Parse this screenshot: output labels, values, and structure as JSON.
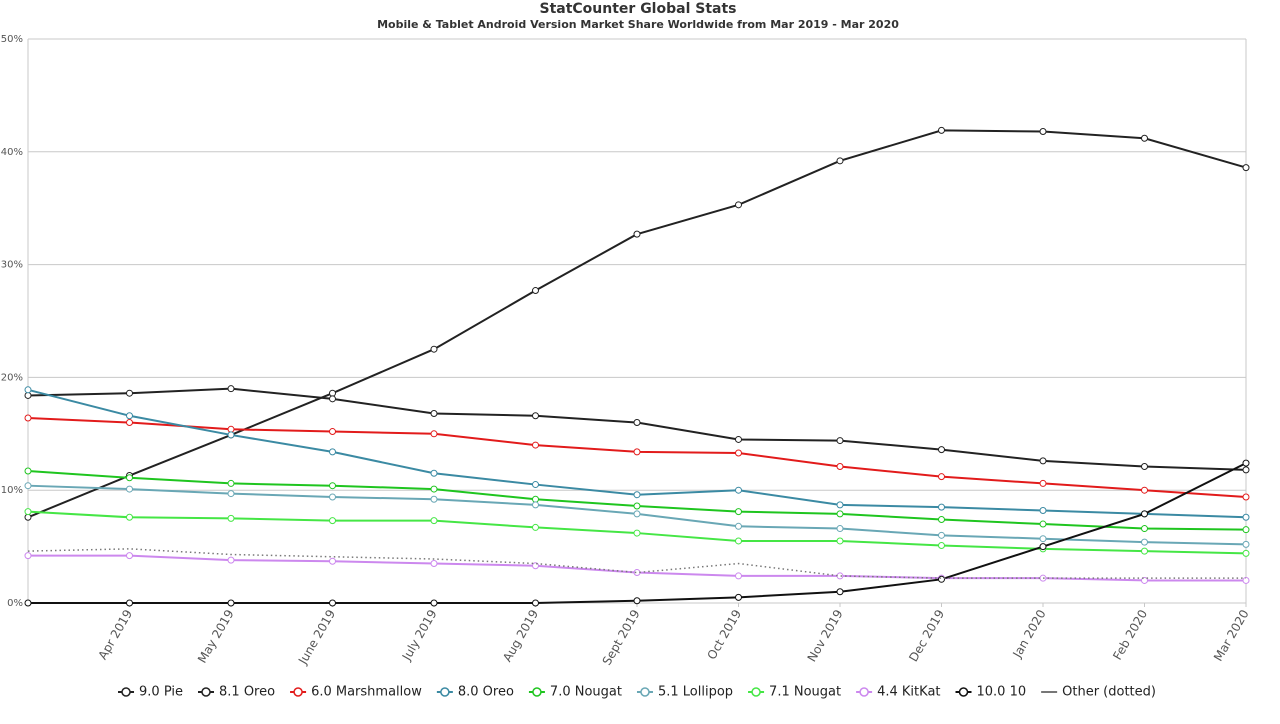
{
  "chart_data": {
    "type": "line",
    "title": "StatCounter Global Stats",
    "subtitle": "Mobile & Tablet Android Version Market Share Worldwide from Mar 2019 - Mar 2020",
    "categories": [
      null,
      "Apr 2019",
      "May 2019",
      "June 2019",
      "July 2019",
      "Aug 2019",
      "Sept 2019",
      "Oct 2019",
      "Nov 2019",
      "Dec 2019",
      "Jan 2020",
      "Feb 2020",
      "Mar 2020"
    ],
    "ylim": [
      0,
      50
    ],
    "yticks": [
      {
        "value": 0,
        "label": "0%"
      },
      {
        "value": 10,
        "label": "10%"
      },
      {
        "value": 20,
        "label": "20%"
      },
      {
        "value": 30,
        "label": "30%"
      },
      {
        "value": 40,
        "label": "40%"
      },
      {
        "value": 50,
        "label": "50%"
      }
    ],
    "grid": true,
    "legend": "bottom",
    "series": [
      {
        "name": "9.0 Pie",
        "color": "#222222",
        "values": [
          7.6,
          11.3,
          14.9,
          18.6,
          22.5,
          27.7,
          32.7,
          35.3,
          39.2,
          41.9,
          41.8,
          41.2,
          38.6
        ]
      },
      {
        "name": "8.1 Oreo",
        "color": "#222222",
        "values": [
          18.4,
          18.6,
          19.0,
          18.1,
          16.8,
          16.6,
          16.0,
          14.5,
          14.4,
          13.6,
          12.6,
          12.1,
          11.8
        ]
      },
      {
        "name": "6.0 Marshmallow",
        "color": "#e21b1b",
        "values": [
          16.4,
          16.0,
          15.4,
          15.2,
          15.0,
          14.0,
          13.4,
          13.3,
          12.1,
          11.2,
          10.6,
          10.0,
          9.4
        ]
      },
      {
        "name": "8.0 Oreo",
        "color": "#3b8aa3",
        "values": [
          18.9,
          16.6,
          14.9,
          13.4,
          11.5,
          10.5,
          9.6,
          10.0,
          8.7,
          8.5,
          8.2,
          7.9,
          7.6
        ]
      },
      {
        "name": "7.0 Nougat",
        "color": "#1fc51f",
        "values": [
          11.7,
          11.1,
          10.6,
          10.4,
          10.1,
          9.2,
          8.6,
          8.1,
          7.9,
          7.4,
          7.0,
          6.6,
          6.5
        ]
      },
      {
        "name": "5.1 Lollipop",
        "color": "#69a7b5",
        "values": [
          10.4,
          10.1,
          9.7,
          9.4,
          9.2,
          8.7,
          7.9,
          6.8,
          6.6,
          6.0,
          5.7,
          5.4,
          5.2
        ]
      },
      {
        "name": "7.1 Nougat",
        "color": "#45e645",
        "values": [
          8.1,
          7.6,
          7.5,
          7.3,
          7.3,
          6.7,
          6.2,
          5.5,
          5.5,
          5.1,
          4.8,
          4.6,
          4.4
        ]
      },
      {
        "name": "4.4 KitKat",
        "color": "#cc88ee",
        "values": [
          4.2,
          4.2,
          3.8,
          3.7,
          3.5,
          3.3,
          2.7,
          2.4,
          2.4,
          2.2,
          2.2,
          2.0,
          2.0
        ]
      },
      {
        "name": "10.0 10",
        "color": "#111111",
        "values": [
          0,
          0,
          0,
          0,
          0,
          0,
          0.2,
          0.5,
          1.0,
          2.1,
          5.0,
          7.9,
          12.4
        ]
      },
      {
        "name": "Other (dotted)",
        "color": "#777777",
        "dotted": true,
        "values": [
          4.6,
          4.8,
          4.3,
          4.1,
          3.9,
          3.5,
          2.7,
          3.5,
          2.4,
          2.2,
          2.2,
          2.2,
          2.2
        ]
      }
    ]
  }
}
